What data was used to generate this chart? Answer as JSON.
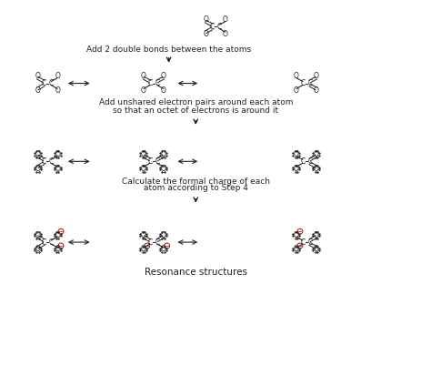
{
  "dark_color": "#222222",
  "red_color": "#cc0000",
  "step1_text": "Add 2 double bonds between the atoms",
  "step2_text": [
    "Add unshared electron pairs around each atom",
    "so that an octet of electrons is around it"
  ],
  "step3_text": [
    "Calculate the formal charge of each",
    "atom according to Step 4"
  ],
  "final_text": "Resonance structures",
  "font_size_small": 5.5,
  "font_size_medium": 6.5
}
